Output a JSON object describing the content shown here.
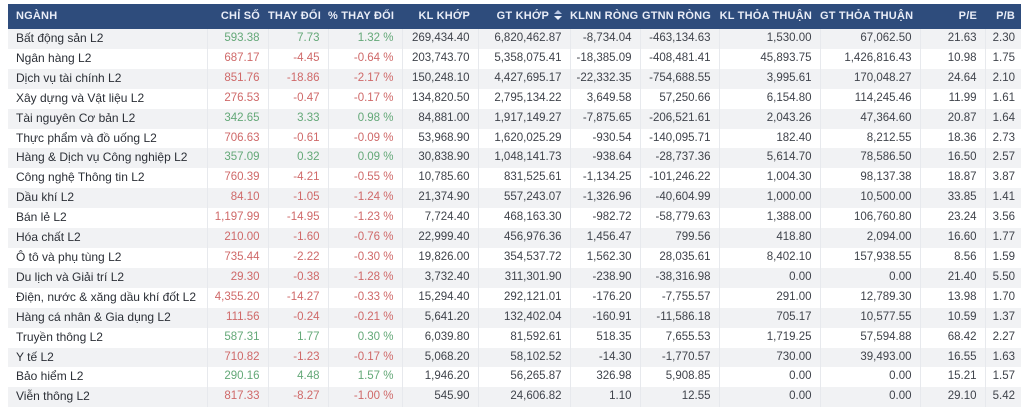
{
  "colors": {
    "header_bg": "#2e4c7c",
    "header_text": "#e9edf7",
    "stripe": "#f1f2f4",
    "grid": "#e7e9ed",
    "up": "#64a878",
    "down": "#cf6969",
    "number_text": "#3f434b",
    "name_text": "#2b2f36"
  },
  "table": {
    "sorted_by": "GT KHỚP",
    "sort_direction": "desc",
    "columns": [
      {
        "key": "sector",
        "label": "NGÀNH",
        "align": "left"
      },
      {
        "key": "index",
        "label": "CHỈ SỐ"
      },
      {
        "key": "change",
        "label": "THAY ĐỔI"
      },
      {
        "key": "pct",
        "label": "% THAY ĐỔI"
      },
      {
        "key": "vol",
        "label": "KL KHỚP"
      },
      {
        "key": "val",
        "label": "GT KHỚP",
        "sorted": "desc"
      },
      {
        "key": "fvol",
        "label": "KLNN RÒNG"
      },
      {
        "key": "fval",
        "label": "GTNN RÒNG"
      },
      {
        "key": "ptvol",
        "label": "KL THỎA THUẬN"
      },
      {
        "key": "ptval",
        "label": "GT THỎA THUẬN"
      },
      {
        "key": "pe",
        "label": "P/E"
      },
      {
        "key": "pb",
        "label": "P/B"
      }
    ],
    "rows": [
      {
        "sector": "Bất động sản L2",
        "trend": "up",
        "index": "593.38",
        "change": "7.73",
        "pct": "1.32 %",
        "vol": "269,434.40",
        "val": "6,820,462.87",
        "fvol": "-8,734.04",
        "fval": "-463,134.63",
        "ptvol": "1,530.00",
        "ptval": "67,062.50",
        "pe": "21.63",
        "pb": "2.30"
      },
      {
        "sector": "Ngân hàng L2",
        "trend": "down",
        "index": "687.17",
        "change": "-4.45",
        "pct": "-0.64 %",
        "vol": "203,743.70",
        "val": "5,358,075.41",
        "fvol": "-18,385.09",
        "fval": "-408,481.41",
        "ptvol": "45,893.75",
        "ptval": "1,426,816.43",
        "pe": "10.98",
        "pb": "1.75"
      },
      {
        "sector": "Dịch vụ tài chính L2",
        "trend": "down",
        "index": "851.76",
        "change": "-18.86",
        "pct": "-2.17 %",
        "vol": "150,248.10",
        "val": "4,427,695.17",
        "fvol": "-22,332.35",
        "fval": "-754,688.55",
        "ptvol": "3,995.61",
        "ptval": "170,048.27",
        "pe": "24.64",
        "pb": "2.10"
      },
      {
        "sector": "Xây dựng và Vật liệu L2",
        "trend": "down",
        "index": "276.53",
        "change": "-0.47",
        "pct": "-0.17 %",
        "vol": "134,820.50",
        "val": "2,795,134.22",
        "fvol": "3,649.58",
        "fval": "57,250.66",
        "ptvol": "6,154.80",
        "ptval": "114,245.46",
        "pe": "11.99",
        "pb": "1.61"
      },
      {
        "sector": "Tài nguyên Cơ bản L2",
        "trend": "up",
        "index": "342.65",
        "change": "3.33",
        "pct": "0.98 %",
        "vol": "84,881.00",
        "val": "1,917,149.27",
        "fvol": "-7,875.65",
        "fval": "-206,521.61",
        "ptvol": "2,043.26",
        "ptval": "47,364.60",
        "pe": "20.87",
        "pb": "1.64"
      },
      {
        "sector": "Thực phẩm và đồ uống L2",
        "trend": "down",
        "index": "706.63",
        "change": "-0.61",
        "pct": "-0.09 %",
        "vol": "53,968.90",
        "val": "1,620,025.29",
        "fvol": "-930.54",
        "fval": "-140,095.71",
        "ptvol": "182.40",
        "ptval": "8,212.55",
        "pe": "18.36",
        "pb": "2.73"
      },
      {
        "sector": "Hàng & Dịch vụ Công nghiệp L2",
        "trend": "up",
        "index": "357.09",
        "change": "0.32",
        "pct": "0.09 %",
        "vol": "30,838.90",
        "val": "1,048,141.73",
        "fvol": "-938.64",
        "fval": "-28,737.36",
        "ptvol": "5,614.70",
        "ptval": "78,586.50",
        "pe": "16.50",
        "pb": "2.57"
      },
      {
        "sector": "Công nghệ Thông tin L2",
        "trend": "down",
        "index": "760.39",
        "change": "-4.21",
        "pct": "-0.55 %",
        "vol": "10,785.60",
        "val": "831,525.61",
        "fvol": "-1,134.25",
        "fval": "-101,246.22",
        "ptvol": "1,004.30",
        "ptval": "98,137.38",
        "pe": "18.87",
        "pb": "3.87"
      },
      {
        "sector": "Dầu khí L2",
        "trend": "down",
        "index": "84.10",
        "change": "-1.05",
        "pct": "-1.24 %",
        "vol": "21,374.90",
        "val": "557,243.07",
        "fvol": "-1,326.96",
        "fval": "-40,604.99",
        "ptvol": "1,000.00",
        "ptval": "10,500.00",
        "pe": "33.85",
        "pb": "1.41"
      },
      {
        "sector": "Bán lẻ L2",
        "trend": "down",
        "index": "1,197.99",
        "change": "-14.95",
        "pct": "-1.23 %",
        "vol": "7,724.40",
        "val": "468,163.30",
        "fvol": "-982.72",
        "fval": "-58,779.63",
        "ptvol": "1,388.00",
        "ptval": "106,760.80",
        "pe": "23.24",
        "pb": "3.56"
      },
      {
        "sector": "Hóa chất L2",
        "trend": "down",
        "index": "210.00",
        "change": "-1.60",
        "pct": "-0.76 %",
        "vol": "22,999.40",
        "val": "456,976.36",
        "fvol": "1,456.47",
        "fval": "799.56",
        "ptvol": "418.80",
        "ptval": "2,094.00",
        "pe": "16.60",
        "pb": "1.77"
      },
      {
        "sector": "Ô tô và phụ tùng L2",
        "trend": "down",
        "index": "735.44",
        "change": "-2.22",
        "pct": "-0.30 %",
        "vol": "19,826.00",
        "val": "354,537.72",
        "fvol": "1,562.30",
        "fval": "28,035.61",
        "ptvol": "8,402.10",
        "ptval": "157,938.55",
        "pe": "8.56",
        "pb": "1.59"
      },
      {
        "sector": "Du lịch và Giải trí L2",
        "trend": "down",
        "index": "29.30",
        "change": "-0.38",
        "pct": "-1.28 %",
        "vol": "3,732.40",
        "val": "311,301.90",
        "fvol": "-238.90",
        "fval": "-38,316.98",
        "ptvol": "0.00",
        "ptval": "0.00",
        "pe": "21.40",
        "pb": "5.50"
      },
      {
        "sector": "Điện, nước & xăng dầu khí đốt L2",
        "trend": "down",
        "index": "4,355.20",
        "change": "-14.27",
        "pct": "-0.33 %",
        "vol": "15,294.40",
        "val": "292,121.01",
        "fvol": "-176.20",
        "fval": "-7,755.57",
        "ptvol": "291.00",
        "ptval": "12,789.30",
        "pe": "13.98",
        "pb": "1.70"
      },
      {
        "sector": "Hàng cá nhân & Gia dụng L2",
        "trend": "down",
        "index": "111.56",
        "change": "-0.24",
        "pct": "-0.21 %",
        "vol": "5,641.20",
        "val": "132,402.04",
        "fvol": "-160.91",
        "fval": "-11,586.18",
        "ptvol": "705.17",
        "ptval": "10,577.55",
        "pe": "10.59",
        "pb": "1.37"
      },
      {
        "sector": "Truyền thông L2",
        "trend": "up",
        "index": "587.31",
        "change": "1.77",
        "pct": "0.30 %",
        "vol": "6,039.80",
        "val": "81,592.61",
        "fvol": "518.35",
        "fval": "7,655.53",
        "ptvol": "1,719.25",
        "ptval": "57,594.88",
        "pe": "68.42",
        "pb": "2.27"
      },
      {
        "sector": "Y tế L2",
        "trend": "down",
        "index": "710.82",
        "change": "-1.23",
        "pct": "-0.17 %",
        "vol": "5,068.20",
        "val": "58,102.52",
        "fvol": "-14.30",
        "fval": "-1,770.57",
        "ptvol": "730.00",
        "ptval": "39,493.00",
        "pe": "16.55",
        "pb": "1.63"
      },
      {
        "sector": "Bảo hiểm L2",
        "trend": "up",
        "index": "290.16",
        "change": "4.48",
        "pct": "1.57 %",
        "vol": "1,946.20",
        "val": "56,265.87",
        "fvol": "326.98",
        "fval": "5,908.85",
        "ptvol": "0.00",
        "ptval": "0.00",
        "pe": "15.21",
        "pb": "1.57"
      },
      {
        "sector": "Viễn thông L2",
        "trend": "down",
        "index": "817.33",
        "change": "-8.27",
        "pct": "-1.00 %",
        "vol": "545.90",
        "val": "24,606.82",
        "fvol": "1.10",
        "fval": "12.55",
        "ptvol": "0.00",
        "ptval": "0.00",
        "pe": "29.10",
        "pb": "5.42"
      }
    ]
  }
}
